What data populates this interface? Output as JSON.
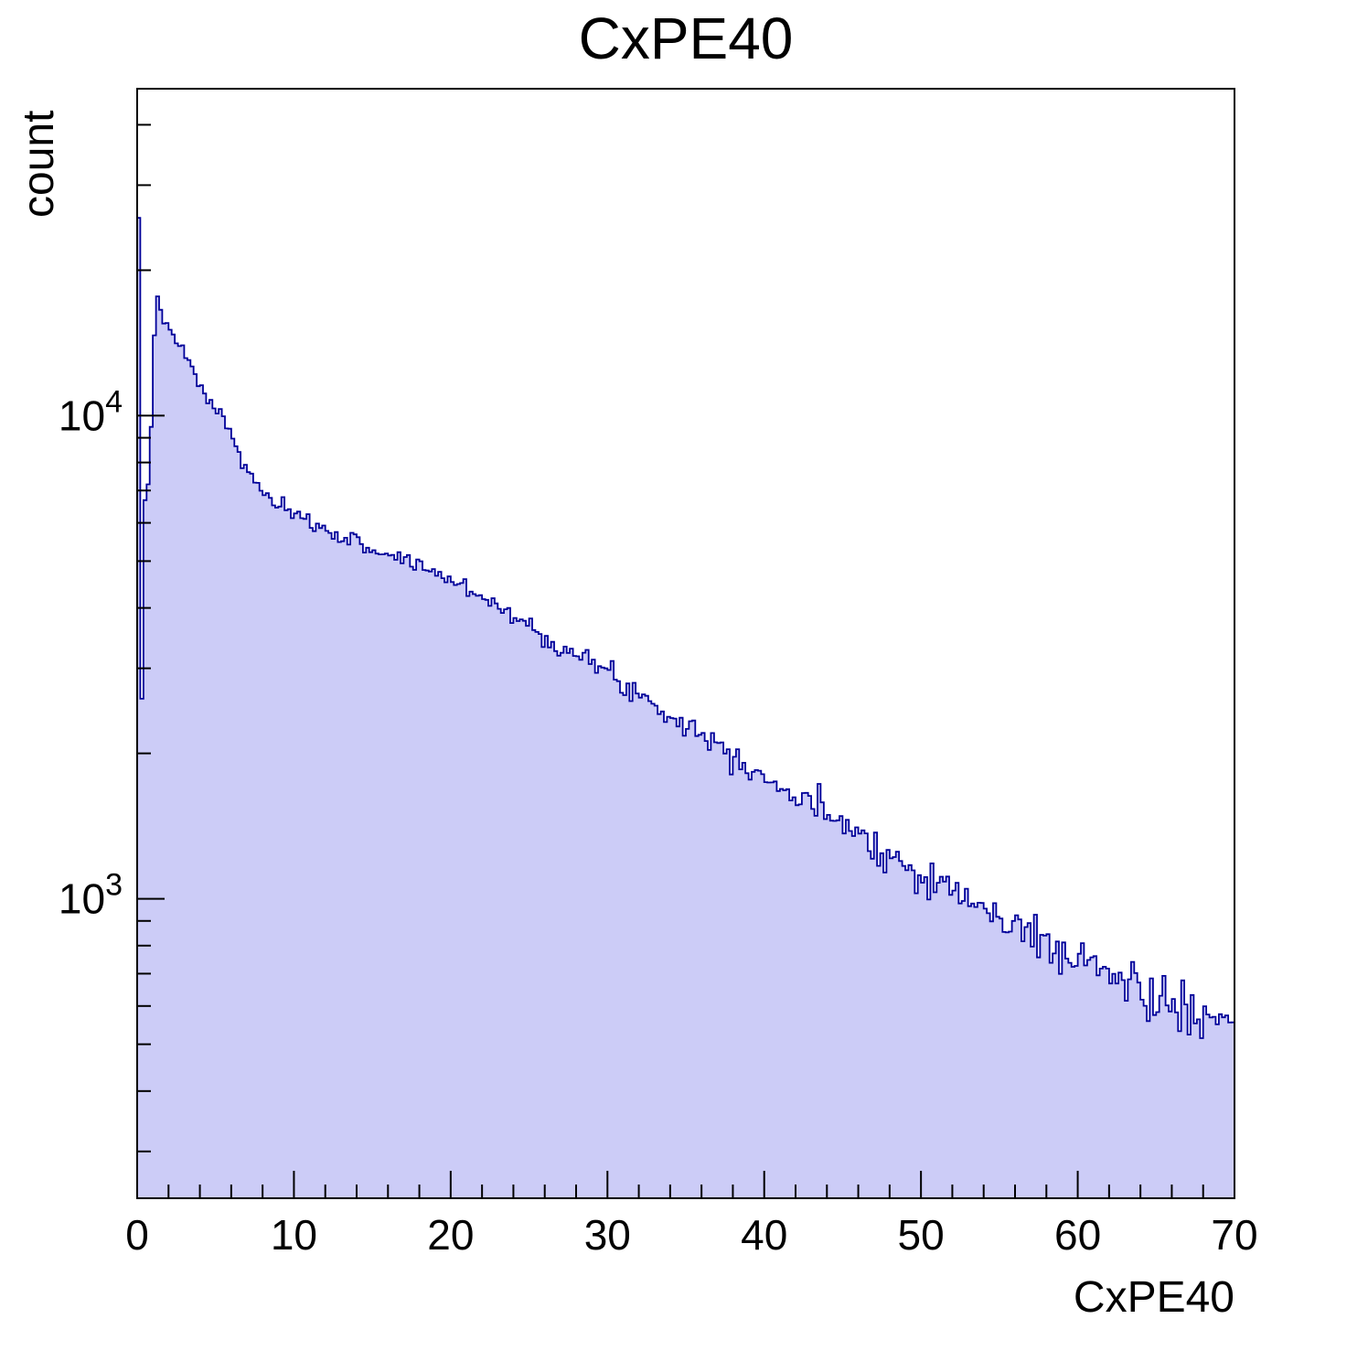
{
  "chart_data": {
    "type": "bar",
    "title": "CxPE40",
    "xlabel": "CxPE40",
    "ylabel": "count",
    "yscale": "log",
    "grid": false,
    "legend": "none",
    "x_range": [
      0,
      70
    ],
    "y_range": [
      240,
      47500
    ],
    "n_bins": 350,
    "bin_width": 0.2,
    "x_major_ticks": [
      0,
      10,
      20,
      30,
      40,
      50,
      60,
      70
    ],
    "x_minor_tick_step": 2,
    "y_labeled_decades": [
      3,
      4
    ],
    "fill_color": "#ccccf7",
    "line_color": "#000099",
    "frame_color": "#000000",
    "noise_scale": 1.5,
    "noise_seed": 7,
    "x": [
      0.1,
      0.3,
      0.5,
      0.7,
      0.9,
      1.1,
      1.3,
      1.5,
      1.7,
      2.0,
      2.5,
      3.0,
      3.5,
      4.0,
      4.5,
      5.0,
      5.5,
      6.0,
      6.5,
      7.0,
      7.5,
      8.0,
      8.5,
      9.0,
      9.5,
      10,
      11,
      12,
      13,
      14,
      15,
      16,
      17,
      18,
      19,
      20,
      21,
      22,
      23,
      24,
      25,
      26,
      27,
      28,
      29,
      30,
      31,
      32,
      33,
      34,
      35,
      36,
      37,
      38,
      39,
      40,
      41,
      42,
      43,
      44,
      45,
      46,
      47,
      48,
      49,
      50,
      51,
      52,
      53,
      54,
      55,
      56,
      57,
      58,
      59,
      60,
      61,
      62,
      63,
      64,
      65,
      66,
      67,
      68,
      69,
      70
    ],
    "y": [
      25000,
      2600,
      6800,
      7200,
      9500,
      14500,
      17800,
      16800,
      15800,
      15000,
      14200,
      13500,
      12500,
      11500,
      10800,
      10300,
      10000,
      9000,
      8300,
      7700,
      7300,
      7000,
      6700,
      6500,
      6350,
      6200,
      6000,
      5800,
      5650,
      5450,
      5300,
      5150,
      5050,
      4900,
      4750,
      4550,
      4400,
      4250,
      4050,
      3850,
      3650,
      3500,
      3350,
      3200,
      3050,
      2950,
      2800,
      2650,
      2550,
      2400,
      2300,
      2200,
      2100,
      2000,
      1900,
      1800,
      1700,
      1620,
      1550,
      1500,
      1480,
      1380,
      1300,
      1230,
      1170,
      1110,
      1130,
      1030,
      990,
      950,
      910,
      875,
      840,
      810,
      780,
      755,
      725,
      700,
      670,
      645,
      625,
      600,
      580,
      560,
      540,
      520
    ]
  }
}
